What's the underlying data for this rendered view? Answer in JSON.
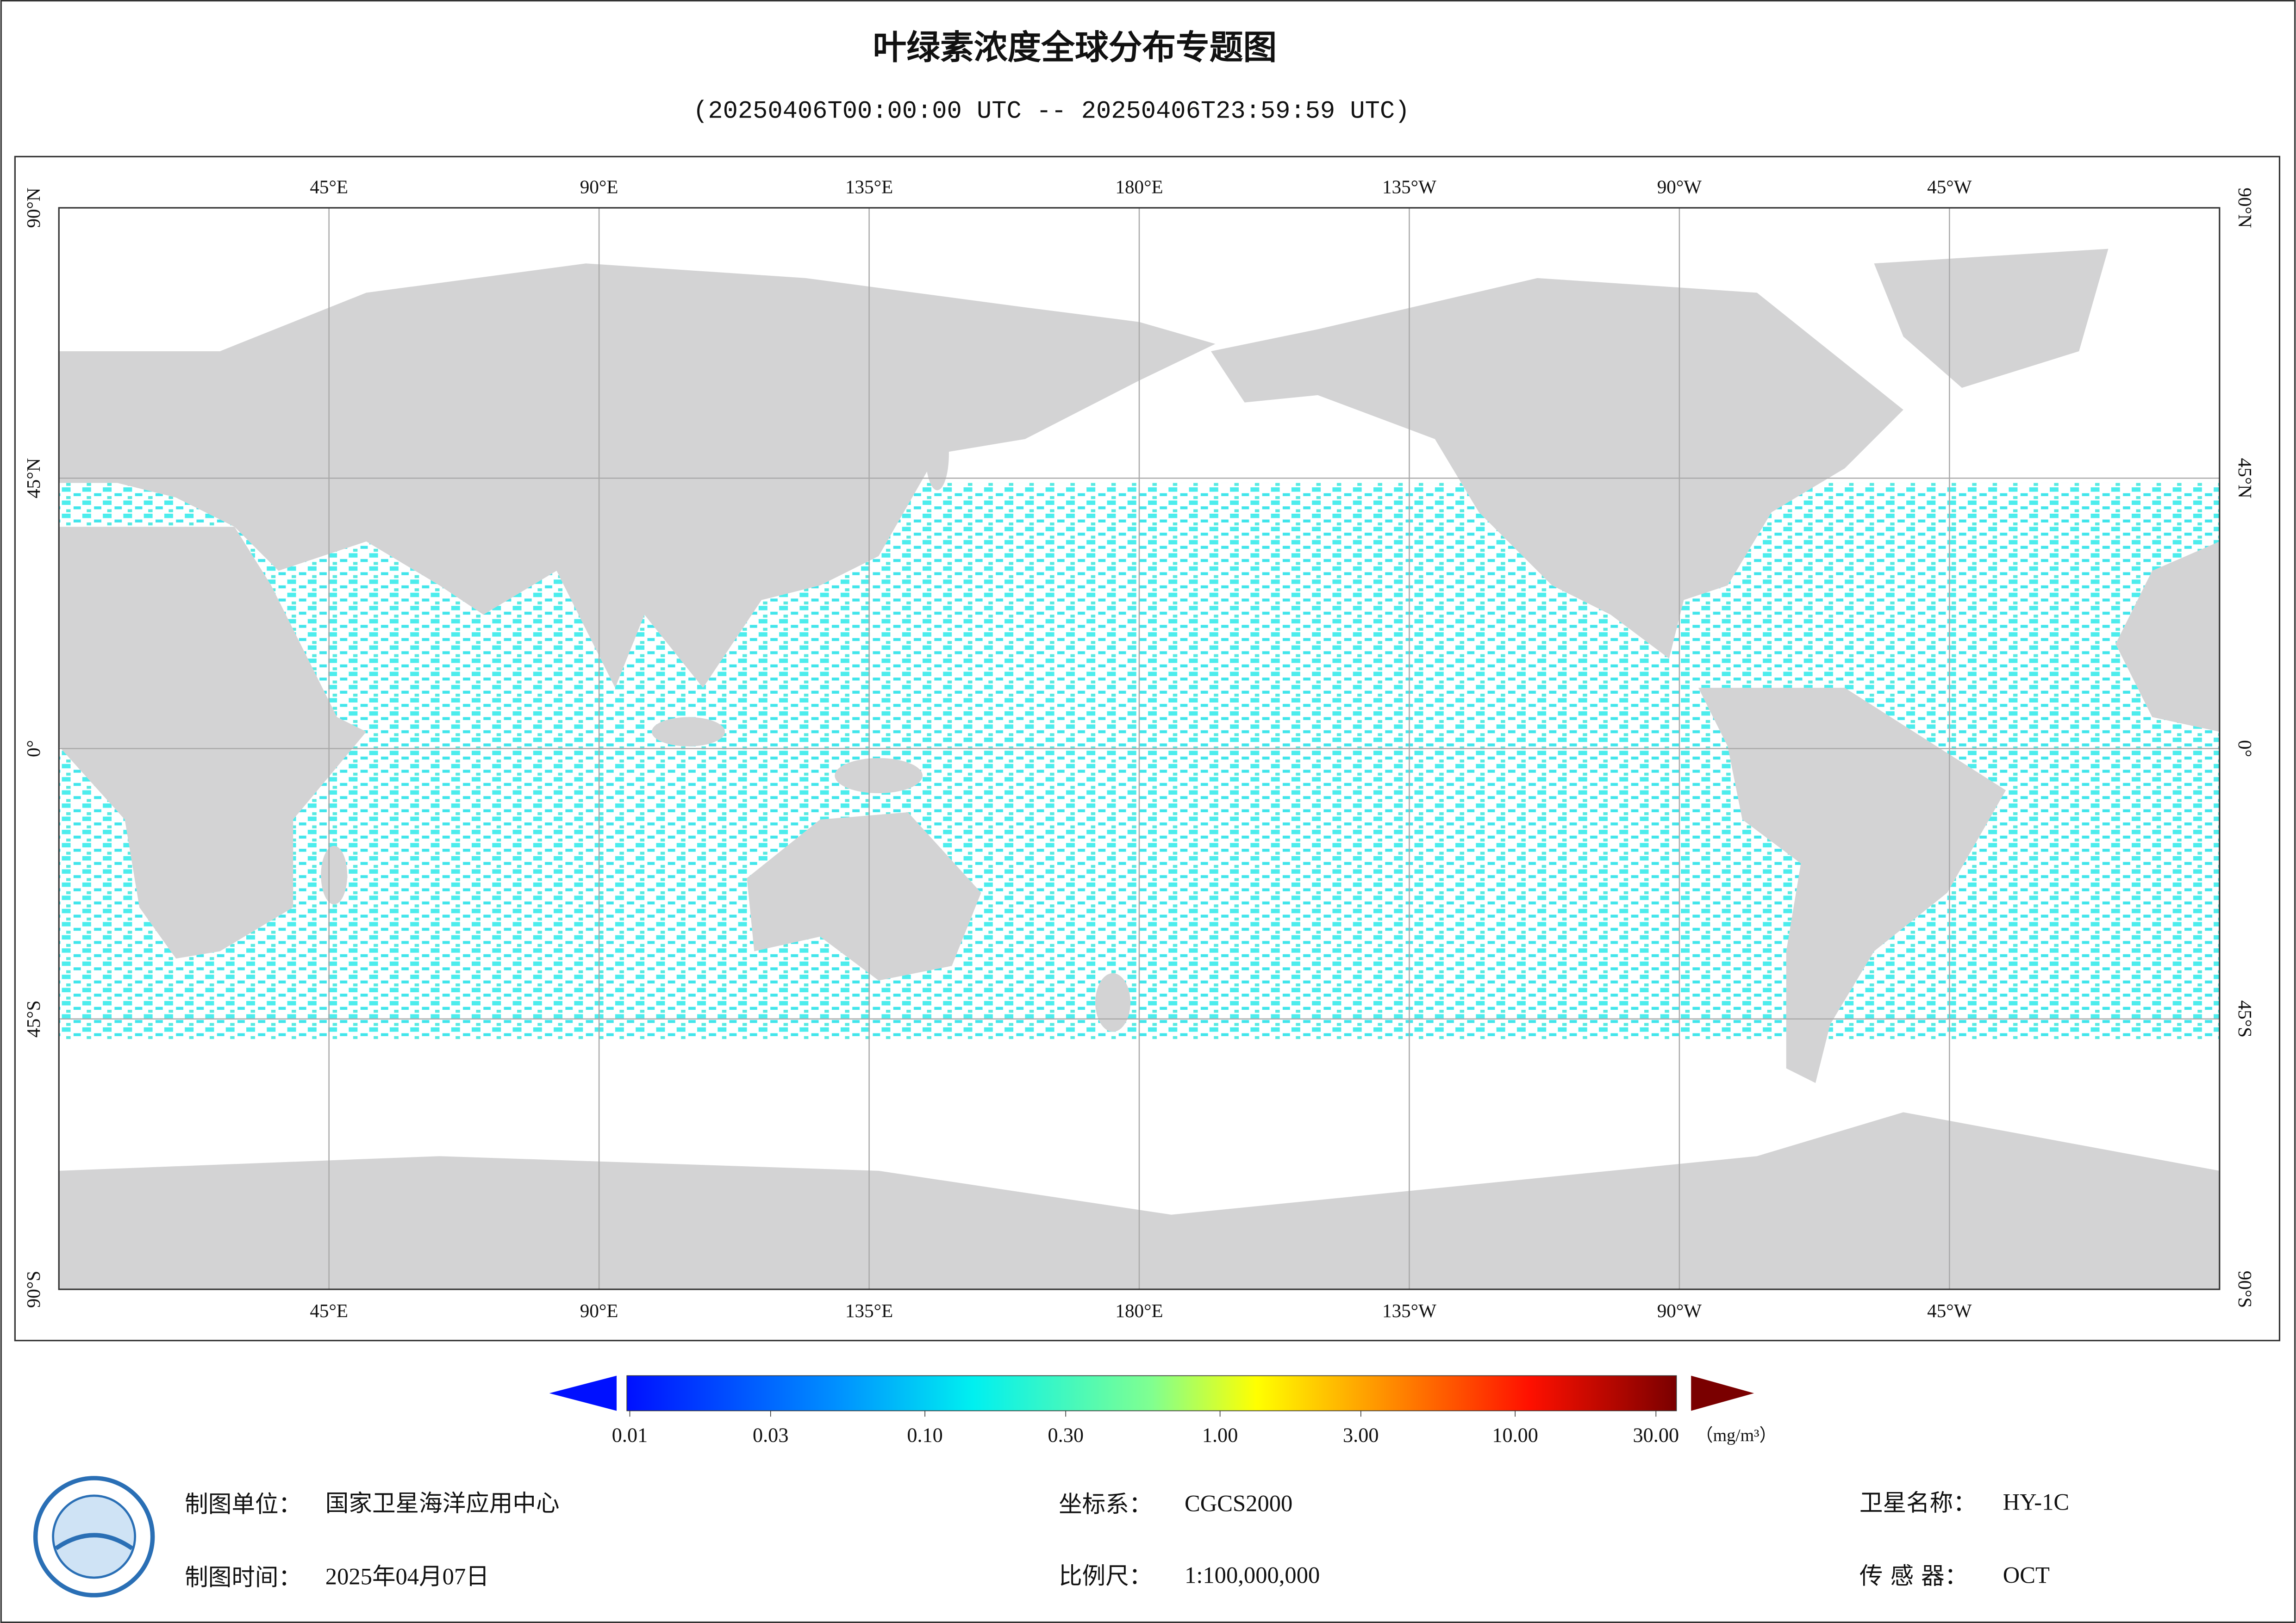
{
  "header": {
    "title": "叶绿素浓度全球分布专题图",
    "subtitle": "(20250406T00:00:00 UTC -- 20250406T23:59:59 UTC)"
  },
  "map": {
    "lon_ticks": [
      {
        "value": 45,
        "label": "45°E"
      },
      {
        "value": 90,
        "label": "90°E"
      },
      {
        "value": 135,
        "label": "135°E"
      },
      {
        "value": 180,
        "label": "180°E"
      },
      {
        "value": 225,
        "label": "135°W"
      },
      {
        "value": 270,
        "label": "90°W"
      },
      {
        "value": 315,
        "label": "45°W"
      }
    ],
    "lonlim": [
      0,
      360
    ],
    "lat_ticks": [
      {
        "value": 90,
        "label": "90°N"
      },
      {
        "value": 45,
        "label": "45°N"
      },
      {
        "value": 0,
        "label": "0°"
      },
      {
        "value": -45,
        "label": "45°S"
      },
      {
        "value": -90,
        "label": "90°S"
      }
    ],
    "latlim": [
      -90,
      90
    ],
    "grid": true
  },
  "colorbar": {
    "log": true,
    "lim": [
      0.01,
      30
    ],
    "ticks": [
      {
        "value": 0.01,
        "label": "0.01"
      },
      {
        "value": 0.03,
        "label": "0.03"
      },
      {
        "value": 0.1,
        "label": "0.10"
      },
      {
        "value": 0.3,
        "label": "0.30"
      },
      {
        "value": 1,
        "label": "1.00"
      },
      {
        "value": 3,
        "label": "3.00"
      },
      {
        "value": 10,
        "label": "10.00"
      },
      {
        "value": 30,
        "label": "30.00"
      }
    ],
    "unit": "（mg/m³）"
  },
  "footer": [
    {
      "label": "制图单位：",
      "value": "国家卫星海洋应用中心"
    },
    {
      "label": "制图时间：",
      "value": "2025年04月07日"
    },
    {
      "label": "坐标系：",
      "value": "CGCS2000"
    },
    {
      "label": "比例尺：",
      "value": "1:100,000,000"
    },
    {
      "label": "卫星名称：",
      "value": "HY-1C"
    },
    {
      "label": "传 感 器：",
      "value": "OCT"
    }
  ]
}
